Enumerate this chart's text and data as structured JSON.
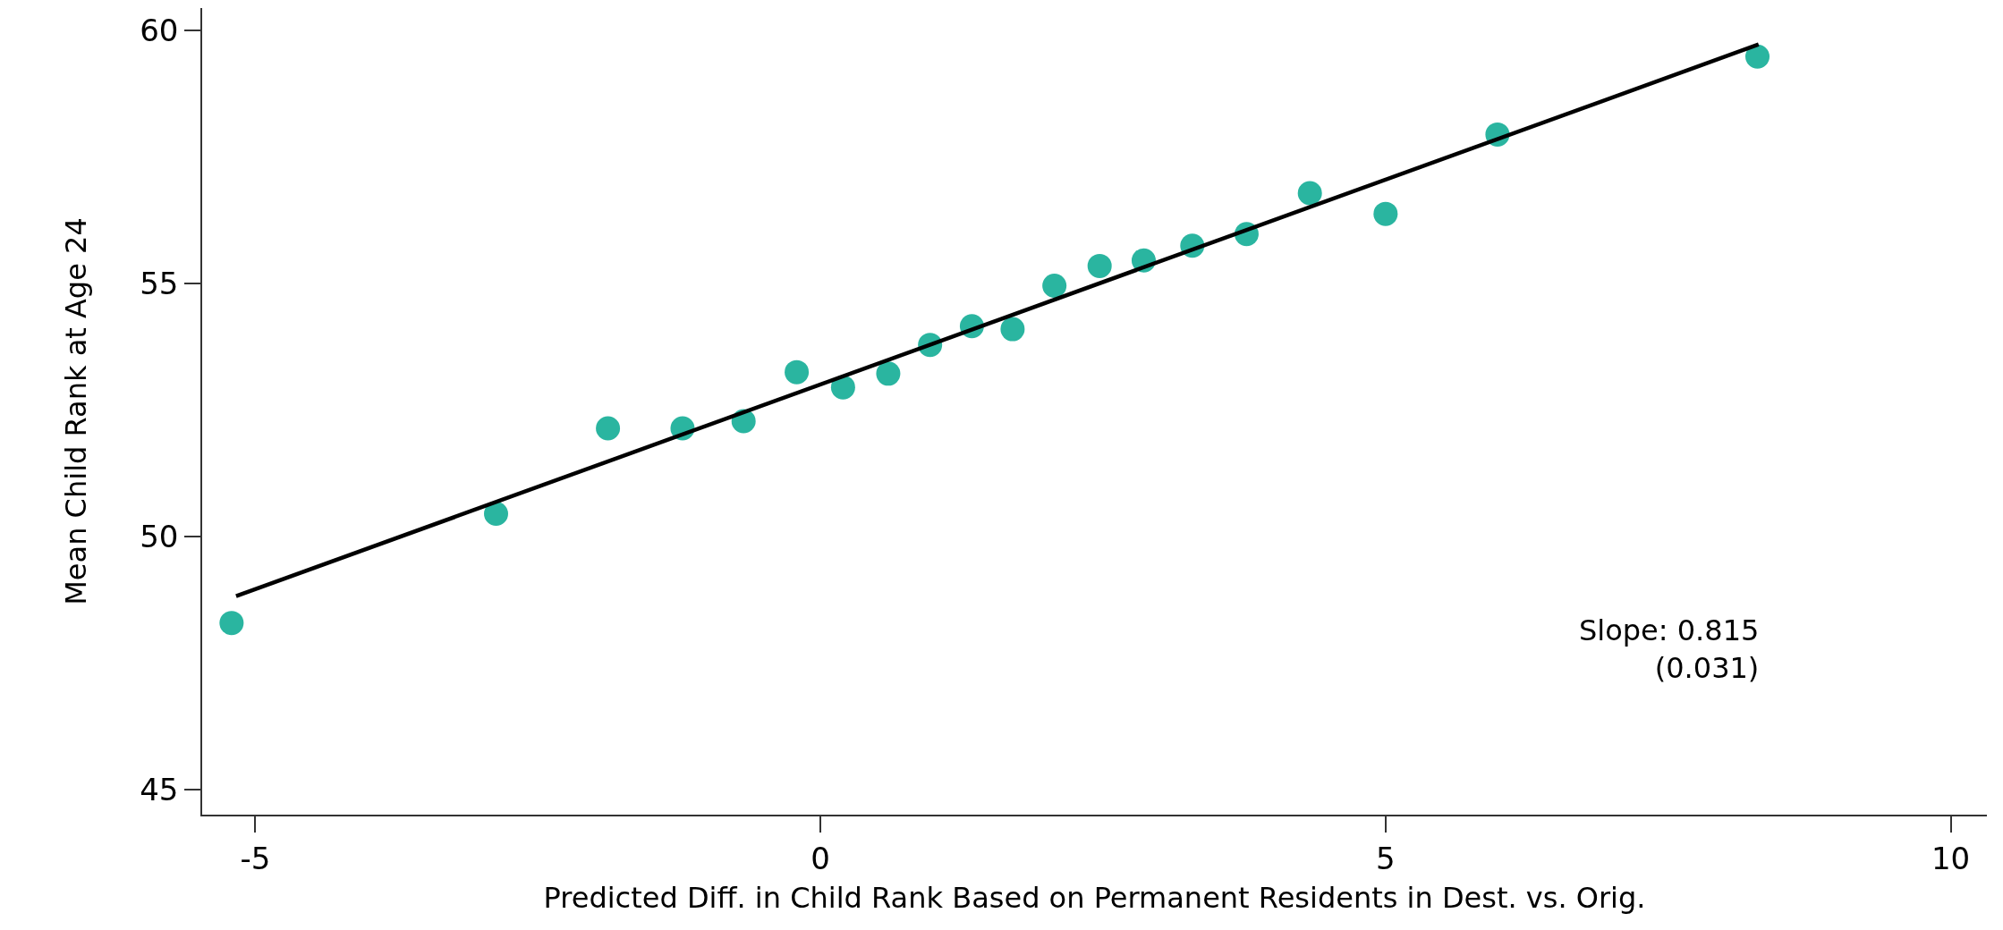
{
  "chart_data": {
    "type": "scatter",
    "xlabel": "Predicted Diff. in Child Rank Based on Permanent Residents in Dest. vs. Orig.",
    "ylabel": "Mean Child Rank at Age 24",
    "xlim": [
      -5.47,
      10.32
    ],
    "ylim": [
      44.5,
      60.45
    ],
    "xticks": [
      -5,
      0,
      5,
      10
    ],
    "yticks": [
      45,
      50,
      55,
      60
    ],
    "grid": false,
    "annotations": [
      "Slope: 0.815\n(0.031)"
    ],
    "series": [
      {
        "marker": "circle",
        "color": "#2ab5a0",
        "x": [
          -5.21,
          -2.87,
          -1.88,
          -1.22,
          -0.68,
          -0.21,
          0.2,
          0.6,
          0.97,
          1.34,
          1.7,
          2.07,
          2.47,
          2.86,
          3.29,
          3.77,
          4.33,
          5.0,
          5.99,
          8.29
        ],
        "values": [
          48.29,
          50.45,
          52.14,
          52.14,
          52.28,
          53.25,
          52.95,
          53.22,
          53.79,
          54.16,
          54.1,
          54.96,
          55.35,
          55.46,
          55.75,
          55.98,
          56.79,
          56.38,
          57.95,
          59.49
        ]
      },
      {
        "type": "line",
        "color": "#000000",
        "line_style": "solid",
        "x": [
          -5.17,
          8.3
        ],
        "values": [
          48.82,
          59.73
        ]
      }
    ]
  }
}
